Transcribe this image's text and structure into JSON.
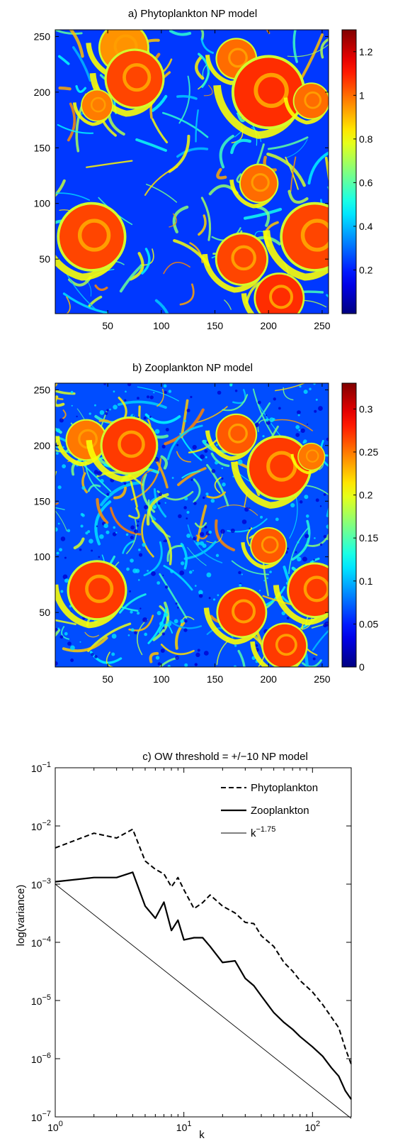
{
  "chart_data": [
    {
      "type": "heatmap",
      "title": "a) Phytoplankton NP model",
      "xlim": [
        1,
        256
      ],
      "ylim": [
        1,
        256
      ],
      "xticks": [
        "50",
        "100",
        "150",
        "200",
        "250"
      ],
      "yticks": [
        "50",
        "100",
        "150",
        "200",
        "250"
      ],
      "colorbar": {
        "range": [
          0,
          1.3
        ],
        "ticks": [
          "0.2",
          "0.4",
          "0.6",
          "0.8",
          "1",
          "1.2"
        ],
        "colormap": "jet"
      },
      "eddies": [
        {
          "x": 35,
          "y": 70,
          "r": 30,
          "value": 1.05
        },
        {
          "x": 65,
          "y": 240,
          "r": 22,
          "value": 0.95
        },
        {
          "x": 75,
          "y": 212,
          "r": 26,
          "value": 1.05
        },
        {
          "x": 40,
          "y": 188,
          "r": 14,
          "value": 0.98
        },
        {
          "x": 170,
          "y": 230,
          "r": 18,
          "value": 1.0
        },
        {
          "x": 200,
          "y": 200,
          "r": 32,
          "value": 1.08
        },
        {
          "x": 240,
          "y": 192,
          "r": 16,
          "value": 1.0
        },
        {
          "x": 191,
          "y": 118,
          "r": 17,
          "value": 1.0
        },
        {
          "x": 243,
          "y": 70,
          "r": 30,
          "value": 1.05
        },
        {
          "x": 175,
          "y": 50,
          "r": 23,
          "value": 1.05
        },
        {
          "x": 210,
          "y": 15,
          "r": 22,
          "value": 1.08
        }
      ]
    },
    {
      "type": "heatmap",
      "title": "b) Zooplankton NP model",
      "xlim": [
        1,
        256
      ],
      "ylim": [
        1,
        256
      ],
      "xticks": [
        "50",
        "100",
        "150",
        "200",
        "250"
      ],
      "yticks": [
        "50",
        "100",
        "150",
        "200",
        "250"
      ],
      "colorbar": {
        "range": [
          0,
          0.33
        ],
        "ticks": [
          "0",
          "0.05",
          "0.1",
          "0.15",
          "0.2",
          "0.25",
          "0.3"
        ],
        "colormap": "jet"
      },
      "eddies": [
        {
          "x": 40,
          "y": 70,
          "r": 26,
          "value": 0.27
        },
        {
          "x": 30,
          "y": 205,
          "r": 18,
          "value": 0.25
        },
        {
          "x": 70,
          "y": 200,
          "r": 25,
          "value": 0.27
        },
        {
          "x": 170,
          "y": 210,
          "r": 18,
          "value": 0.26
        },
        {
          "x": 210,
          "y": 180,
          "r": 28,
          "value": 0.27
        },
        {
          "x": 240,
          "y": 190,
          "r": 12,
          "value": 0.25
        },
        {
          "x": 200,
          "y": 110,
          "r": 16,
          "value": 0.26
        },
        {
          "x": 243,
          "y": 70,
          "r": 24,
          "value": 0.27
        },
        {
          "x": 175,
          "y": 50,
          "r": 22,
          "value": 0.27
        },
        {
          "x": 215,
          "y": 20,
          "r": 20,
          "value": 0.27
        }
      ]
    },
    {
      "type": "line",
      "title": "c) OW threshold = +/−10 NP model",
      "xlabel": "k",
      "ylabel": "log(variance)",
      "xscale": "log",
      "yscale": "log",
      "xlim": [
        1,
        200
      ],
      "ylim": [
        1e-07,
        0.1
      ],
      "xtick_values": [
        1,
        10,
        100
      ],
      "xticks": [
        "10^0",
        "10^1",
        "10^2"
      ],
      "ytick_values": [
        1e-07,
        1e-06,
        1e-05,
        0.0001,
        0.001,
        0.01,
        0.1
      ],
      "yticks": [
        "10^-7",
        "10^-6",
        "10^-5",
        "10^-4",
        "10^-3",
        "10^-2",
        "10^-1"
      ],
      "legend_position": "top-right",
      "series": [
        {
          "name": "Phytoplankton",
          "style": "dashed",
          "x": [
            1,
            2,
            3,
            4,
            5,
            6,
            7,
            8,
            9,
            10,
            12,
            14,
            16,
            20,
            25,
            30,
            35,
            40,
            50,
            60,
            70,
            80,
            100,
            120,
            140,
            160,
            180,
            200
          ],
          "y": [
            0.0042,
            0.0075,
            0.0062,
            0.0088,
            0.0025,
            0.0018,
            0.0015,
            0.0009,
            0.0013,
            0.0008,
            0.00038,
            0.00048,
            0.00065,
            0.00042,
            0.00032,
            0.00022,
            0.00021,
            0.00013,
            8.5e-05,
            4.5e-05,
            3.2e-05,
            2.2e-05,
            1.4e-05,
            8.5e-06,
            5.2e-06,
            3.4e-06,
            1.5e-06,
            8e-07
          ]
        },
        {
          "name": "Zooplankton",
          "style": "solid",
          "x": [
            1,
            2,
            3,
            4,
            5,
            6,
            7,
            8,
            9,
            10,
            12,
            14,
            16,
            20,
            25,
            30,
            35,
            40,
            50,
            60,
            70,
            80,
            100,
            120,
            140,
            160,
            180,
            200
          ],
          "y": [
            0.0011,
            0.0013,
            0.0013,
            0.0016,
            0.00042,
            0.00026,
            0.00049,
            0.00016,
            0.00024,
            0.00011,
            0.00012,
            0.00012,
            8.5e-05,
            4.5e-05,
            4.8e-05,
            2.4e-05,
            1.8e-05,
            1.2e-05,
            6.2e-06,
            4.2e-06,
            3.2e-06,
            2.4e-06,
            1.6e-06,
            1.1e-06,
            7e-07,
            5e-07,
            2.8e-07,
            2e-07
          ]
        },
        {
          "name": "k^{-1.75}",
          "style": "thin",
          "x": [
            1,
            200
          ],
          "y": [
            0.001,
            9.42e-08
          ]
        }
      ]
    }
  ]
}
